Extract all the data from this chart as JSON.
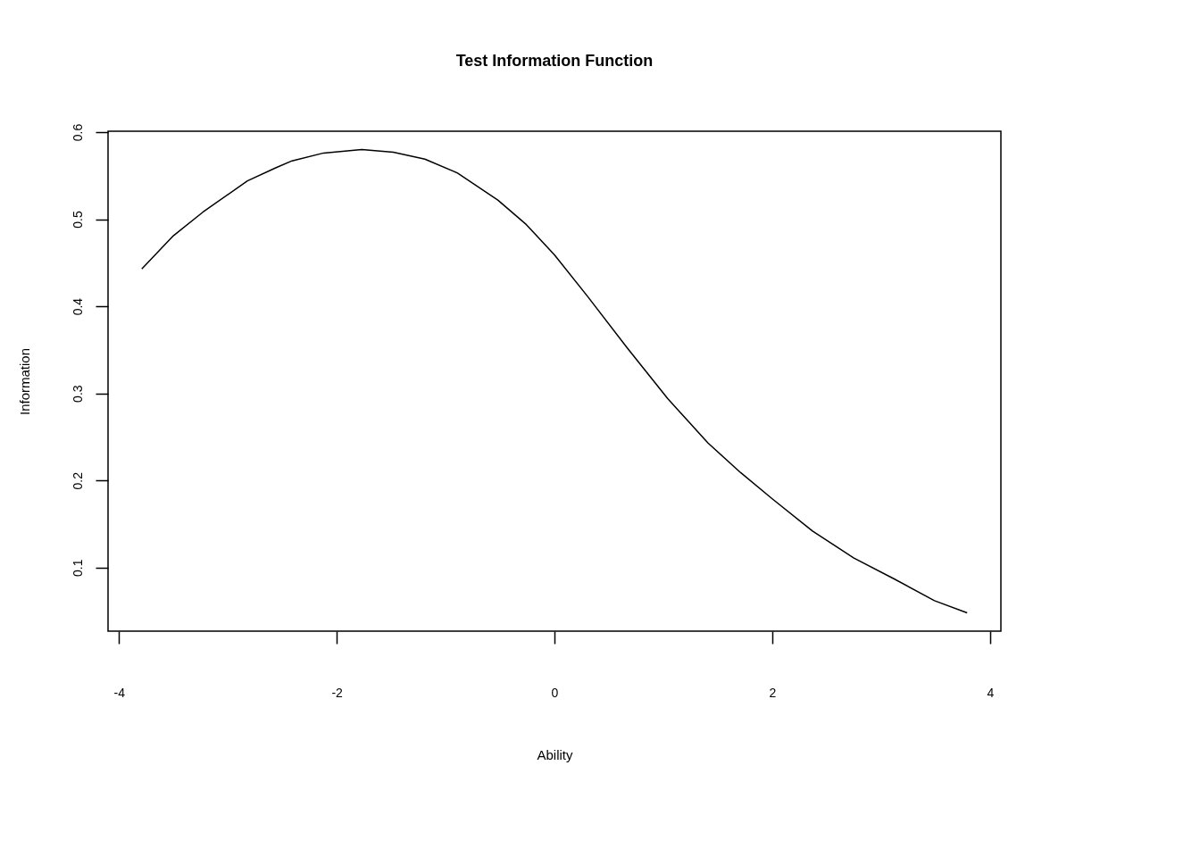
{
  "chart_data": {
    "type": "line",
    "title": "Test Information Function",
    "xlabel": "Ability",
    "ylabel": "Information",
    "x": [
      -3.79,
      -3.5,
      -3.23,
      -2.82,
      -2.56,
      -2.41,
      -2.12,
      -1.77,
      -1.48,
      -1.19,
      -0.89,
      -0.52,
      -0.26,
      0,
      0.3,
      0.67,
      1.04,
      1.41,
      1.71,
      2.0,
      2.37,
      2.75,
      3.12,
      3.49,
      3.79
    ],
    "series": [
      {
        "color": "#000000",
        "values": [
          0.443,
          0.481,
          0.508,
          0.544,
          0.559,
          0.567,
          0.576,
          0.58,
          0.577,
          0.569,
          0.553,
          0.522,
          0.494,
          0.459,
          0.412,
          0.352,
          0.294,
          0.243,
          0.209,
          0.179,
          0.142,
          0.111,
          0.087,
          0.062,
          0.048
        ]
      }
    ],
    "xlim": [
      -4.1,
      4.1
    ],
    "ylim": [
      0.027,
      0.601
    ],
    "xticks": [
      -4,
      -2,
      0,
      2,
      4
    ],
    "yticks": [
      0.1,
      0.2,
      0.3,
      0.4,
      0.5,
      0.6
    ],
    "grid": false,
    "marker": "none",
    "line_style": "solid"
  }
}
